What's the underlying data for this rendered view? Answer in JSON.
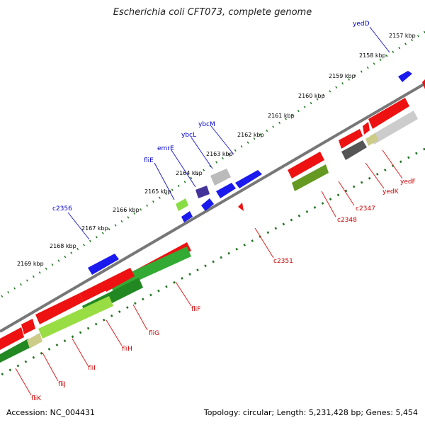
{
  "title": "Escherichia coli CFT073, complete genome",
  "footer": {
    "accession": "Accession: NC_004431",
    "info": "Topology: circular; Length: 5,231,428 bp; Genes: 5,454"
  },
  "colors": {
    "forward_label": "#0000cc",
    "reverse_label": "#cc0000",
    "backbone": "#888888",
    "tick_dot": "#227722"
  },
  "ticks": [
    "2157 kbp",
    "2158 kbp",
    "2159 kbp",
    "2160 kbp",
    "2161 kbp",
    "2162 kbp",
    "2163 kbp",
    "2164 kbp",
    "2165 kbp",
    "2166 kbp",
    "2167 kbp",
    "2168 kbp",
    "2169 kbp"
  ],
  "forward_labels": [
    "yedD",
    "ybcM",
    "ybcL",
    "emrE",
    "fliE",
    "c2356"
  ],
  "reverse_labels": [
    "yedF",
    "yedK",
    "c2347",
    "c2348",
    "c2351",
    "fliF",
    "fliG",
    "fliH",
    "fliI",
    "fliJ",
    "fliK"
  ]
}
